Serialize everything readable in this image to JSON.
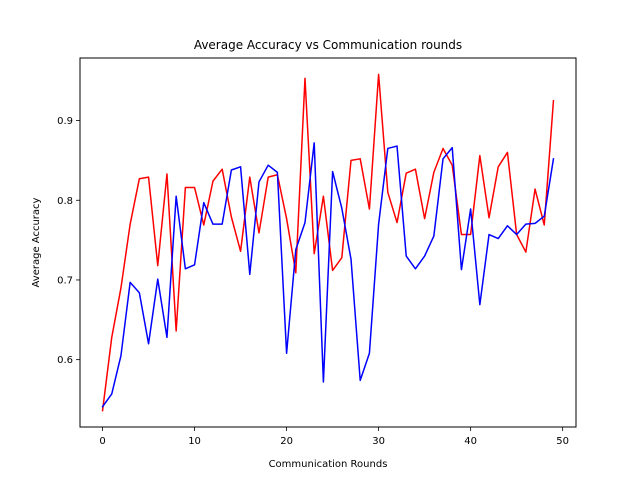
{
  "chart_data": {
    "type": "line",
    "title": "Average Accuracy vs Communication rounds",
    "xlabel": "Communication Rounds",
    "ylabel": "Average Accuracy",
    "xlim": [
      -2.45,
      51.45
    ],
    "ylim": [
      0.5155,
      0.9785
    ],
    "xticks": [
      0,
      10,
      20,
      30,
      40,
      50
    ],
    "yticks": [
      0.6,
      0.7,
      0.8,
      0.9
    ],
    "ytick_labels": [
      "0.6",
      "0.7",
      "0.8",
      "0.9"
    ],
    "grid": false,
    "legend": "none",
    "x": [
      0,
      1,
      2,
      3,
      4,
      5,
      6,
      7,
      8,
      9,
      10,
      11,
      12,
      13,
      14,
      15,
      16,
      17,
      18,
      19,
      20,
      21,
      22,
      23,
      24,
      25,
      26,
      27,
      28,
      29,
      30,
      31,
      32,
      33,
      34,
      35,
      36,
      37,
      38,
      39,
      40,
      41,
      42,
      43,
      44,
      45,
      46,
      47,
      48,
      49
    ],
    "series": [
      {
        "color": "#ff0000",
        "values": [
          0.536,
          0.628,
          0.69,
          0.77,
          0.827,
          0.829,
          0.718,
          0.833,
          0.636,
          0.816,
          0.816,
          0.769,
          0.824,
          0.839,
          0.779,
          0.736,
          0.829,
          0.759,
          0.829,
          0.832,
          0.777,
          0.709,
          0.953,
          0.733,
          0.805,
          0.712,
          0.728,
          0.85,
          0.852,
          0.789,
          0.958,
          0.81,
          0.772,
          0.834,
          0.839,
          0.777,
          0.835,
          0.865,
          0.844,
          0.757,
          0.757,
          0.856,
          0.778,
          0.842,
          0.86,
          0.757,
          0.735,
          0.814,
          0.769,
          0.925
        ]
      },
      {
        "color": "#0000ff",
        "values": [
          0.541,
          0.557,
          0.605,
          0.697,
          0.684,
          0.62,
          0.701,
          0.628,
          0.805,
          0.714,
          0.719,
          0.797,
          0.77,
          0.77,
          0.838,
          0.842,
          0.707,
          0.823,
          0.844,
          0.835,
          0.608,
          0.738,
          0.772,
          0.872,
          0.572,
          0.836,
          0.79,
          0.726,
          0.574,
          0.608,
          0.77,
          0.865,
          0.868,
          0.73,
          0.714,
          0.73,
          0.755,
          0.852,
          0.866,
          0.713,
          0.789,
          0.669,
          0.757,
          0.752,
          0.768,
          0.757,
          0.77,
          0.771,
          0.78,
          0.852
        ]
      }
    ]
  }
}
